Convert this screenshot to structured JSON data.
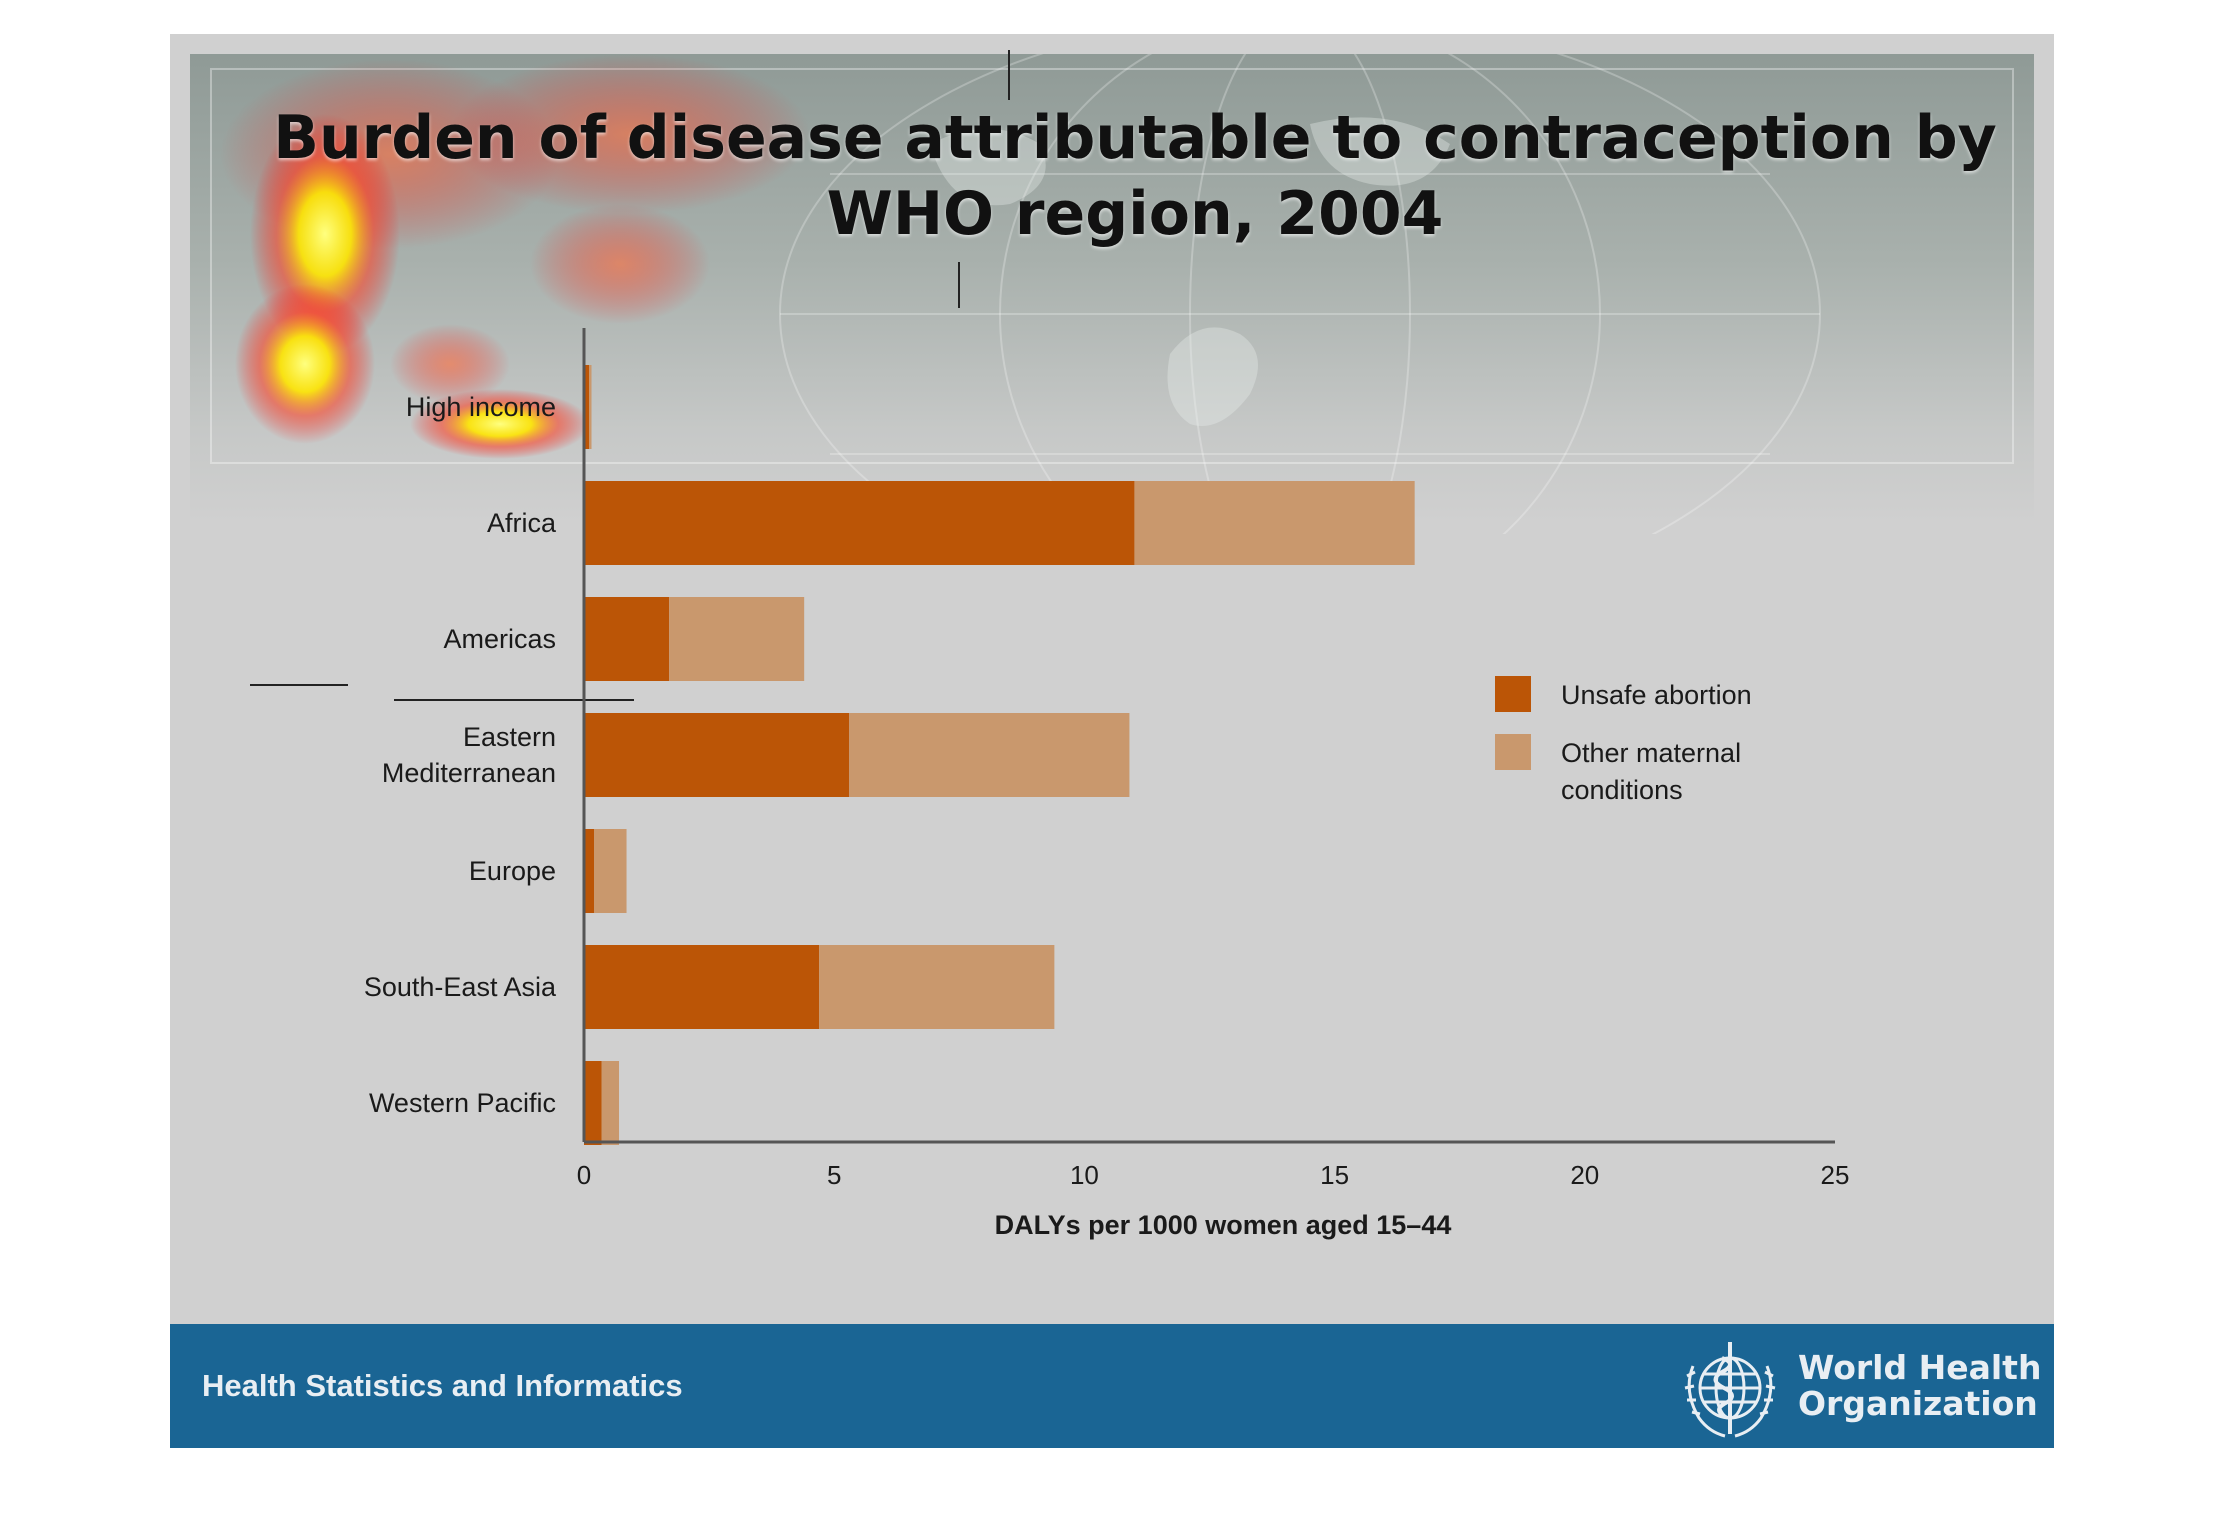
{
  "title": "Burden of disease attributable to contraception by WHO region, 2004",
  "footer": {
    "left_text": "Health Statistics and Informatics",
    "org_line1": "World Health",
    "org_line2": "Organization",
    "logo_icon": "who-emblem-icon"
  },
  "colors": {
    "unsafe_abortion": "#bb5506",
    "other_maternal": "#c9986d",
    "footer_band": "#1a6594",
    "background": "#d0d0d0"
  },
  "chart_data": {
    "type": "bar",
    "orientation": "horizontal",
    "stacked": true,
    "title": "Burden of disease attributable to contraception by WHO region, 2004",
    "xlabel": "DALYs per 1000 women aged 15–44",
    "ylabel": "",
    "xlim": [
      0,
      25
    ],
    "xticks": [
      "0",
      "5",
      "10",
      "15",
      "20",
      "25"
    ],
    "categories": [
      [
        "High income"
      ],
      [
        "Africa"
      ],
      [
        "Americas"
      ],
      [
        "Eastern",
        "Mediterranean"
      ],
      [
        "Europe"
      ],
      [
        "South-East Asia"
      ],
      [
        "Western Pacific"
      ]
    ],
    "series": [
      {
        "name": "Unsafe abortion",
        "values": [
          0.1,
          11.0,
          1.7,
          5.3,
          0.2,
          4.7,
          0.35
        ]
      },
      {
        "name": "Other maternal conditions",
        "values": [
          0.05,
          5.6,
          2.7,
          5.6,
          0.65,
          4.7,
          0.35
        ]
      }
    ],
    "legend": {
      "position": "right",
      "entries": [
        [
          "Unsafe abortion"
        ],
        [
          "Other maternal",
          "conditions"
        ]
      ]
    },
    "grid": false
  }
}
